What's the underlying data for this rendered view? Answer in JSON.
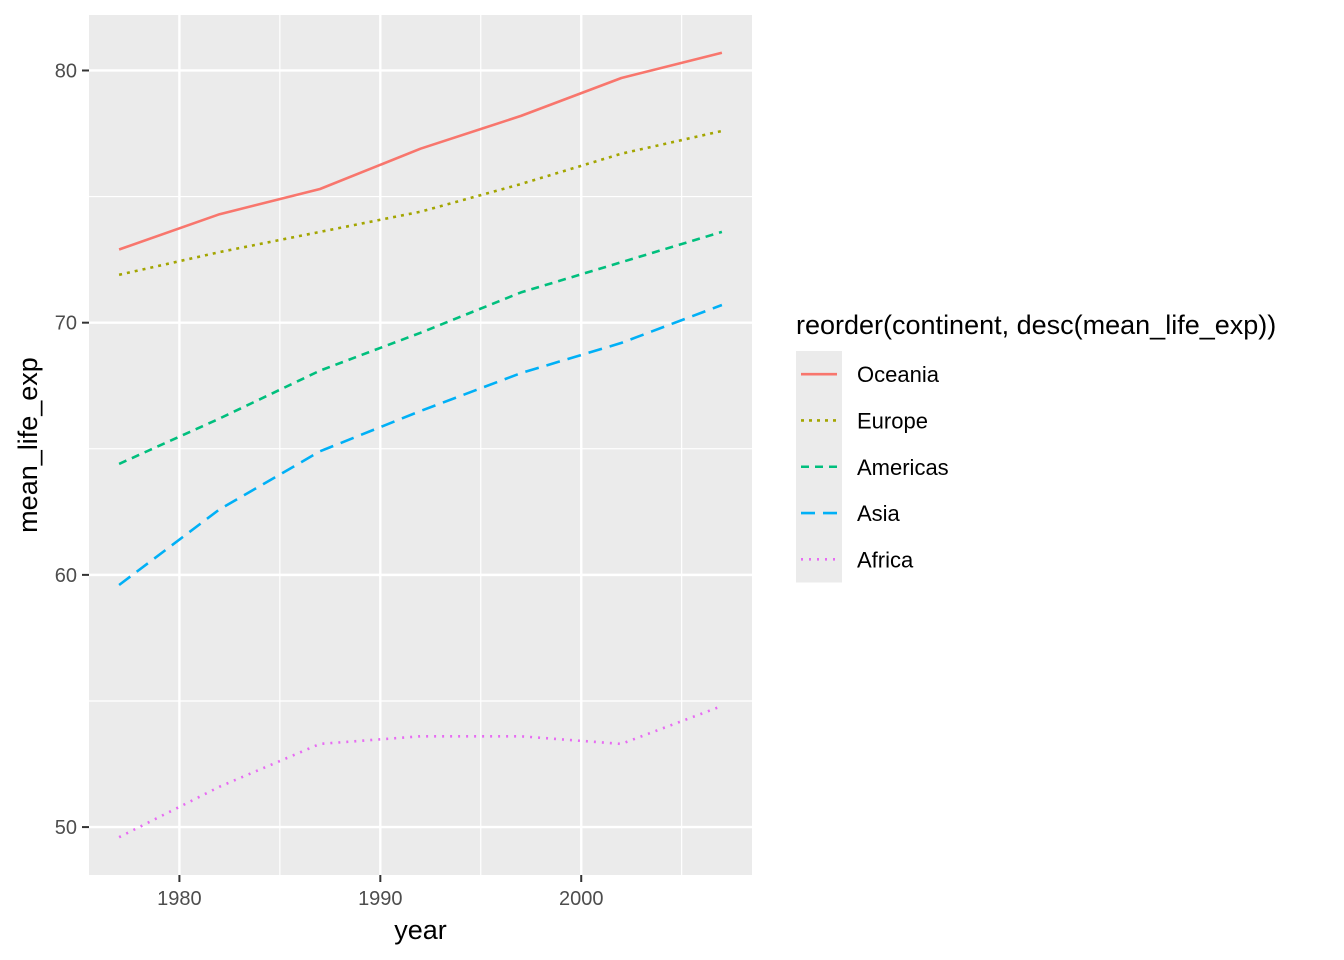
{
  "chart_data": {
    "type": "line",
    "xlabel": "year",
    "ylabel": "mean_life_exp",
    "xlim": [
      1975.5,
      2008.5
    ],
    "ylim": [
      48.1,
      82.2
    ],
    "x_ticks": [
      1980,
      1990,
      2000
    ],
    "y_ticks": [
      50,
      60,
      70,
      80
    ],
    "x_tick_labels": [
      "1980",
      "1990",
      "2000"
    ],
    "y_tick_labels": [
      "50",
      "60",
      "70",
      "80"
    ],
    "grid": true,
    "background": "#ebebeb",
    "legend": {
      "title": "reorder(continent, desc(mean_life_exp))",
      "placement": "right"
    },
    "series": [
      {
        "name": "Oceania",
        "color": "#f8766d",
        "linetype": "solid",
        "x": [
          1977,
          1982,
          1987,
          1992,
          1997,
          2002,
          2007
        ],
        "values": [
          72.9,
          74.3,
          75.3,
          76.9,
          78.2,
          79.7,
          80.7
        ]
      },
      {
        "name": "Europe",
        "color": "#a3a500",
        "linetype": "dotted-short",
        "x": [
          1977,
          1982,
          1987,
          1992,
          1997,
          2002,
          2007
        ],
        "values": [
          71.9,
          72.8,
          73.6,
          74.4,
          75.5,
          76.7,
          77.6
        ]
      },
      {
        "name": "Americas",
        "color": "#00bf7d",
        "linetype": "dashed",
        "x": [
          1977,
          1982,
          1987,
          1992,
          1997,
          2002,
          2007
        ],
        "values": [
          64.4,
          66.2,
          68.1,
          69.6,
          71.2,
          72.4,
          73.6
        ]
      },
      {
        "name": "Asia",
        "color": "#00b0f6",
        "linetype": "longdash",
        "x": [
          1977,
          1982,
          1987,
          1992,
          1997,
          2002,
          2007
        ],
        "values": [
          59.6,
          62.6,
          64.9,
          66.5,
          68.0,
          69.2,
          70.7
        ]
      },
      {
        "name": "Africa",
        "color": "#e76bf3",
        "linetype": "dotted",
        "x": [
          1977,
          1982,
          1987,
          1992,
          1997,
          2002,
          2007
        ],
        "values": [
          49.6,
          51.6,
          53.3,
          53.6,
          53.6,
          53.3,
          54.8
        ]
      }
    ]
  }
}
